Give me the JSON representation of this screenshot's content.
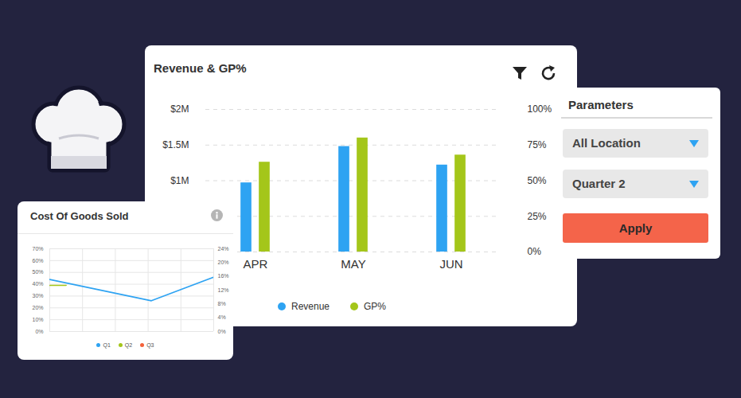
{
  "chart_data": [
    {
      "type": "bar",
      "title": "Revenue & GP%",
      "categories": [
        "APR",
        "MAY",
        "JUN"
      ],
      "series": [
        {
          "name": "Revenue",
          "color": "#2ea3f2",
          "values": [
            970000,
            1480000,
            1220000
          ]
        },
        {
          "name": "GP%",
          "color": "#a4c61a",
          "values": [
            63,
            80,
            68
          ],
          "axis": "y2"
        }
      ],
      "ylim": [
        0,
        2000000
      ],
      "yticks": [
        {
          "value": 1000000,
          "label": "$1M"
        },
        {
          "value": 1500000,
          "label": "$1.5M"
        },
        {
          "value": 2000000,
          "label": "$2M"
        }
      ],
      "y2lim": [
        0,
        100
      ],
      "y2ticks": [
        {
          "value": 0,
          "label": "0%"
        },
        {
          "value": 25,
          "label": "25%"
        },
        {
          "value": 50,
          "label": "50%"
        },
        {
          "value": 75,
          "label": "75%"
        },
        {
          "value": 100,
          "label": "100%"
        }
      ],
      "grid": true,
      "legend": "bottom"
    },
    {
      "type": "line",
      "title": "Cost Of Goods Sold",
      "series": [
        {
          "name": "Q1",
          "color": "#2ea3f2",
          "x": [
            0,
            0.62,
            1
          ],
          "values": [
            44,
            26,
            46
          ]
        },
        {
          "name": "Q2",
          "color": "#a4c61a",
          "x": [
            0,
            0.1
          ],
          "values": [
            39,
            39
          ]
        },
        {
          "name": "Q3",
          "color": "#f4623a",
          "x": [],
          "values": []
        }
      ],
      "xlim": [
        0,
        1
      ],
      "xticks": [
        0,
        0.2,
        0.4,
        0.6,
        0.8,
        1
      ],
      "ylim": [
        0,
        70
      ],
      "yticks": [
        {
          "value": 0,
          "label": "0%"
        },
        {
          "value": 10,
          "label": "10%"
        },
        {
          "value": 20,
          "label": "20%"
        },
        {
          "value": 30,
          "label": "30%"
        },
        {
          "value": 40,
          "label": "40%"
        },
        {
          "value": 50,
          "label": "50%"
        },
        {
          "value": 60,
          "label": "60%"
        },
        {
          "value": 70,
          "label": "70%"
        }
      ],
      "y2lim": [
        0,
        24
      ],
      "y2ticks": [
        {
          "value": 0,
          "label": "0%"
        },
        {
          "value": 4,
          "label": "4%"
        },
        {
          "value": 8,
          "label": "8%"
        },
        {
          "value": 12,
          "label": "12%"
        },
        {
          "value": 16,
          "label": "16%"
        },
        {
          "value": 20,
          "label": "20%"
        },
        {
          "value": 24,
          "label": "24%"
        }
      ],
      "grid": true,
      "legend": "bottom",
      "tick_labels": "y"
    }
  ],
  "parameters": {
    "title": "Parameters",
    "location": "All Location",
    "period": "Quarter 2",
    "button": "Apply"
  }
}
